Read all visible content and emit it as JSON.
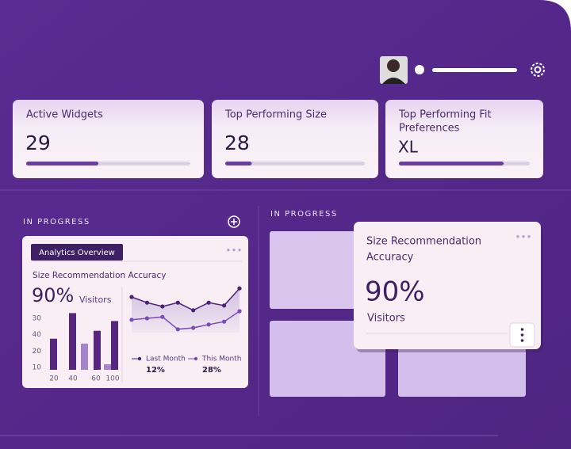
{
  "stats": [
    {
      "title_lines": [
        "Active Widgets"
      ],
      "value": "29",
      "progress": 44
    },
    {
      "title_lines": [
        "Top Performing Size"
      ],
      "value": "28",
      "progress": 19
    },
    {
      "title_lines": [
        "Top Performing Fit",
        "Preferences"
      ],
      "value": "XL",
      "progress": 80
    }
  ],
  "left_section": {
    "label": "IN PROGRESS",
    "card": {
      "tag": "Analytics Overview",
      "title": "Size Recommendation Accuracy",
      "value": "90%",
      "value_caption": "Visitors",
      "bar_chart": {
        "type": "bar",
        "values": [
          51,
          93,
          43,
          64,
          9,
          80
        ],
        "colors": [
          "#56267f",
          "#56267f",
          "#a584cc",
          "#56267f",
          "#a584cc",
          "#56267f"
        ],
        "ylim": [
          0,
          100
        ],
        "y_labels": [
          "30",
          "40",
          "20",
          "10"
        ],
        "x_labels": [
          "20",
          "40",
          "60",
          "100"
        ]
      },
      "line_chart": {
        "type": "line",
        "ylim": [
          0,
          100
        ],
        "series": [
          {
            "name": "Last Month",
            "value": "12%",
            "color": "#4b2276",
            "values": [
              75,
              63,
              55,
              63,
              47,
              63,
              57,
              93
            ]
          },
          {
            "name": "This Month",
            "value": "28%",
            "color": "#7b4bb8",
            "values": [
              27,
              30,
              33,
              7,
              10,
              17,
              23,
              45
            ]
          }
        ]
      }
    }
  },
  "right_section": {
    "label": "IN PROGRESS",
    "card": {
      "title_lines": [
        "Size Recommendation",
        "Accuracy"
      ],
      "value": "90%",
      "value_caption": "Visitors"
    }
  }
}
